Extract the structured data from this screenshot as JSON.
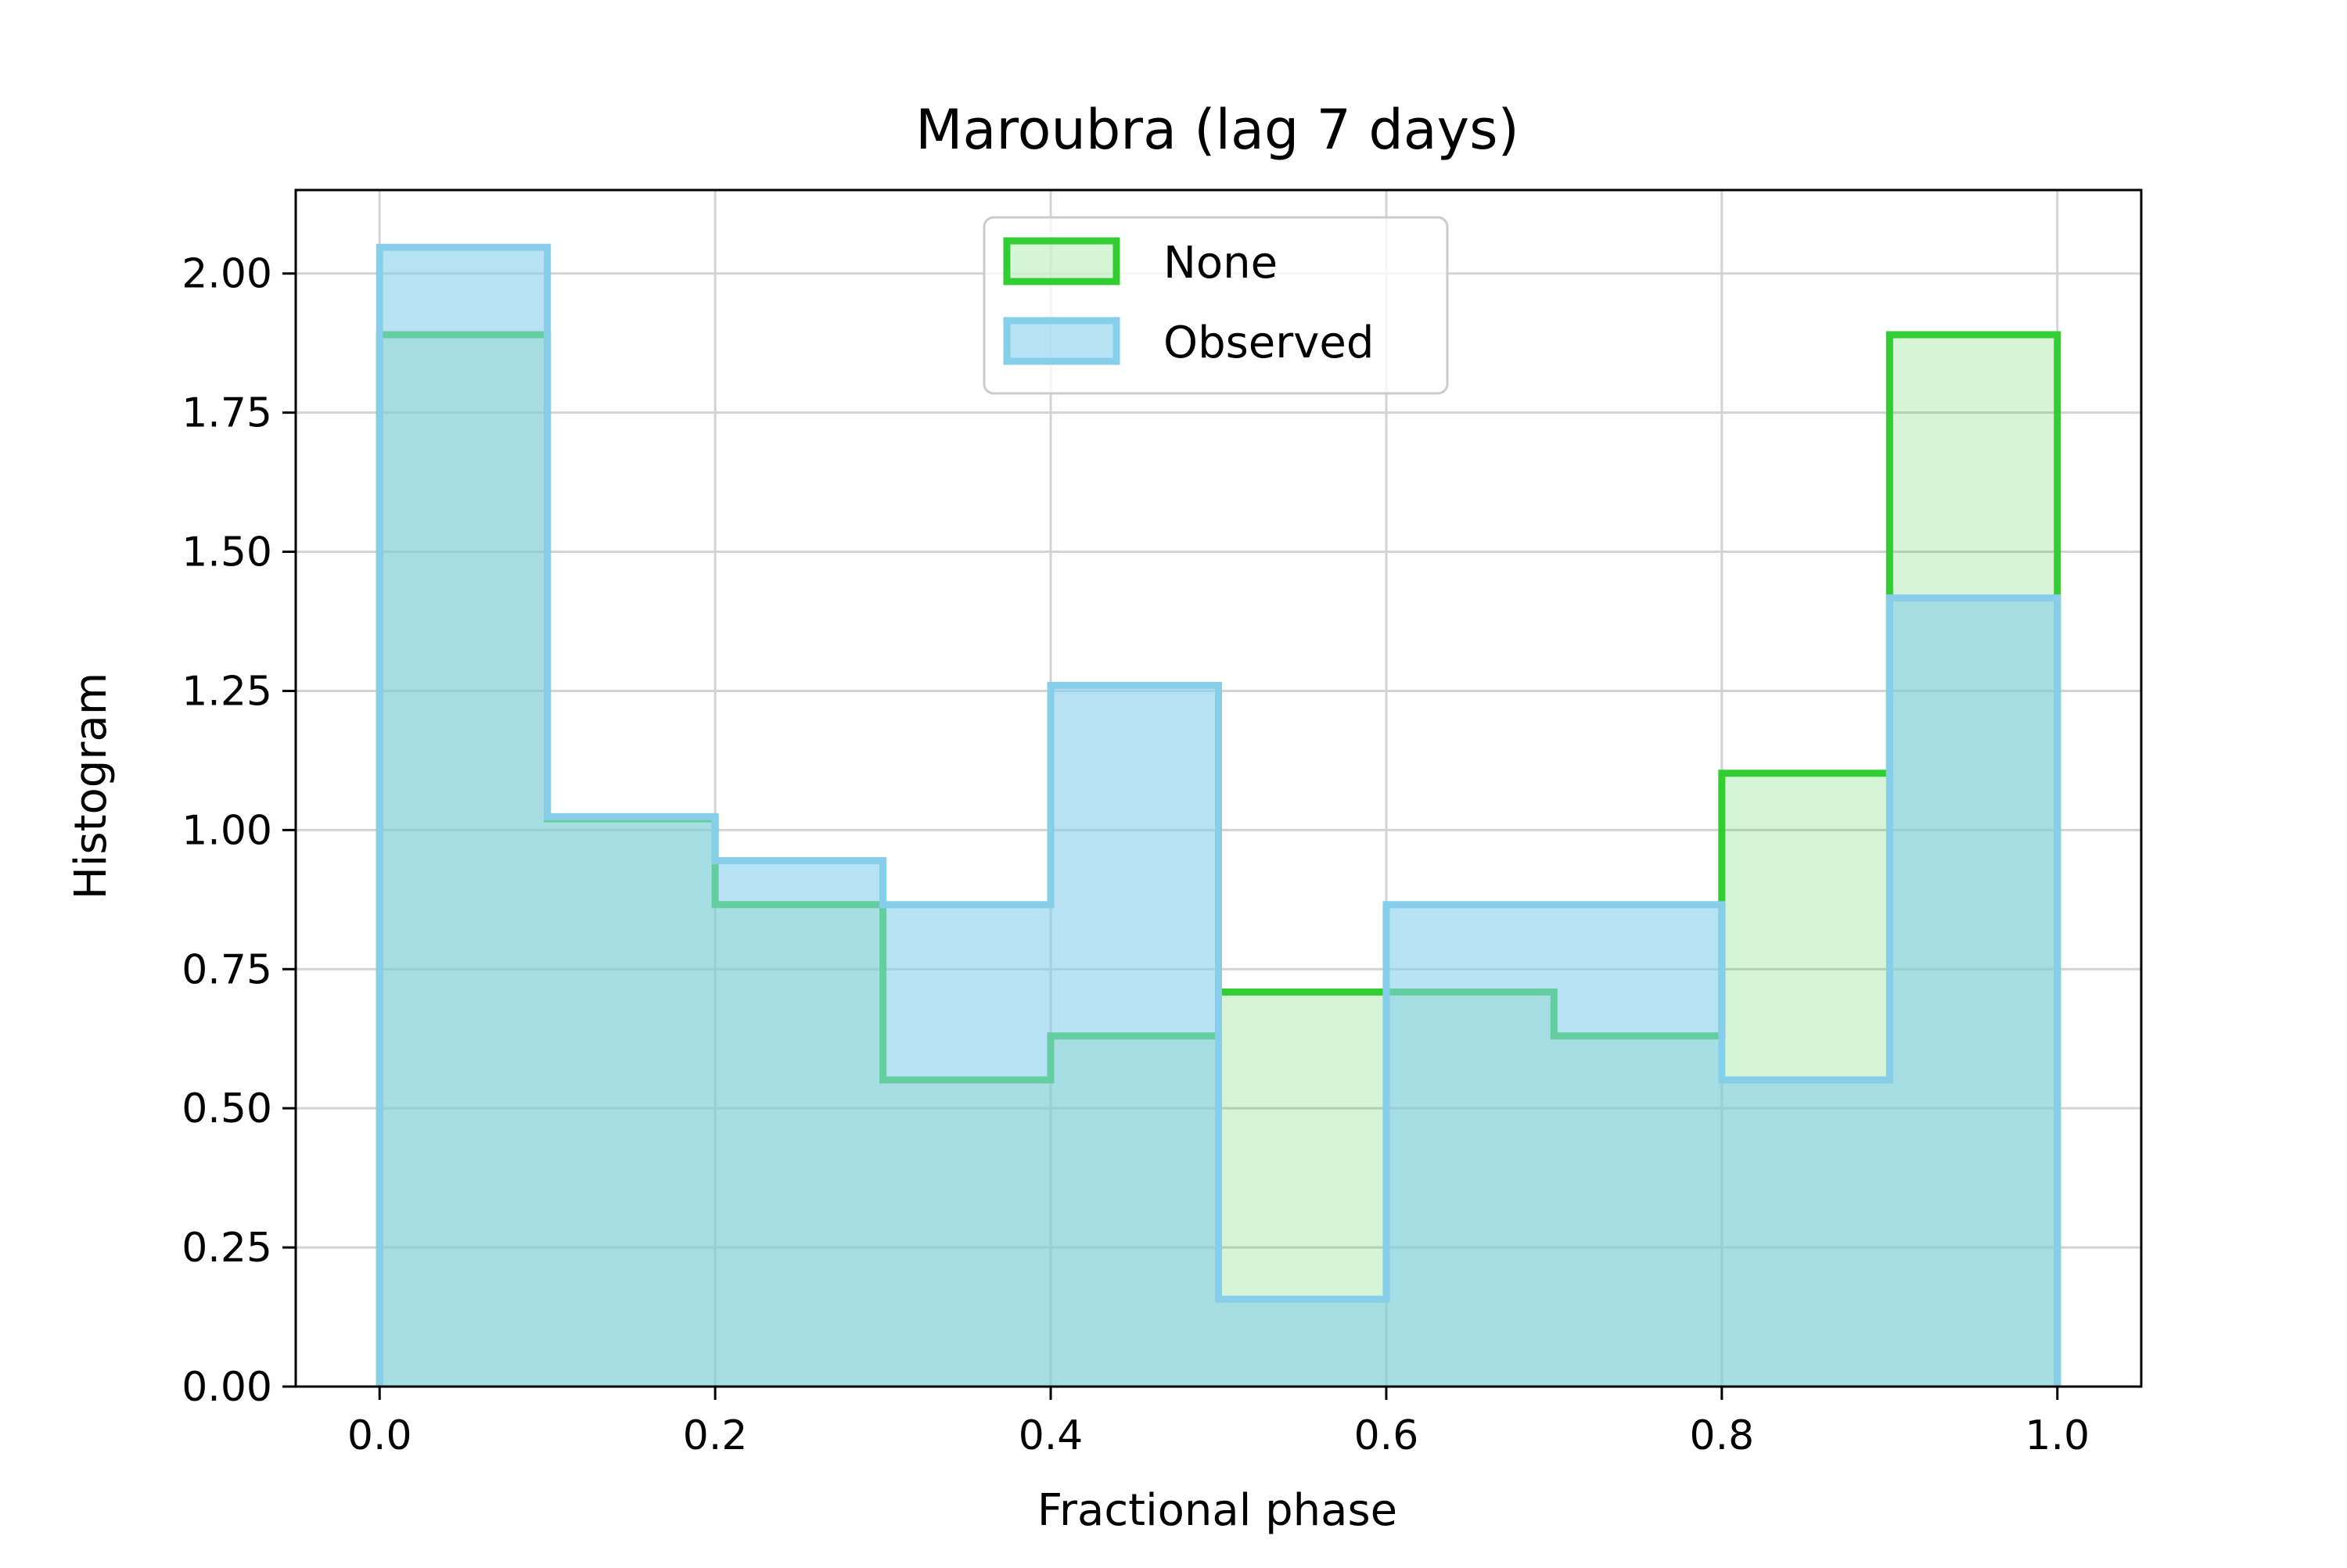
{
  "chart_data": {
    "type": "histogram",
    "title": "Maroubra (lag 7 days)",
    "xlabel": "Fractional phase",
    "ylabel": "Histogram",
    "xlim": [
      -0.05,
      1.05
    ],
    "ylim": [
      0,
      2.15
    ],
    "bin_edges": [
      0.0,
      0.1,
      0.2,
      0.3,
      0.4,
      0.5,
      0.6,
      0.7,
      0.8,
      0.9,
      1.0
    ],
    "x_ticks": [
      {
        "value": 0.0,
        "label": "0.0"
      },
      {
        "value": 0.2,
        "label": "0.2"
      },
      {
        "value": 0.4,
        "label": "0.4"
      },
      {
        "value": 0.6,
        "label": "0.6"
      },
      {
        "value": 0.8,
        "label": "0.8"
      },
      {
        "value": 1.0,
        "label": "1.0"
      }
    ],
    "y_ticks": [
      {
        "value": 0.0,
        "label": "0.00"
      },
      {
        "value": 0.25,
        "label": "0.25"
      },
      {
        "value": 0.5,
        "label": "0.50"
      },
      {
        "value": 0.75,
        "label": "0.75"
      },
      {
        "value": 1.0,
        "label": "1.00"
      },
      {
        "value": 1.25,
        "label": "1.25"
      },
      {
        "value": 1.5,
        "label": "1.50"
      },
      {
        "value": 1.75,
        "label": "1.75"
      },
      {
        "value": 2.0,
        "label": "2.00"
      }
    ],
    "grid": true,
    "legend_position": "top-center",
    "series": [
      {
        "name": "None",
        "edge_color": "#32cd32",
        "fill_color": "#32cd32",
        "fill_opacity": 0.2,
        "values": [
          1.89,
          1.02,
          0.866,
          0.551,
          0.63,
          0.709,
          0.709,
          0.63,
          1.102,
          1.89
        ]
      },
      {
        "name": "Observed",
        "edge_color": "#87ceeb",
        "fill_color": "#87ceeb",
        "fill_opacity": 0.6,
        "values": [
          2.047,
          1.024,
          0.945,
          0.866,
          1.26,
          0.157,
          0.866,
          0.866,
          0.551,
          1.417
        ]
      }
    ]
  }
}
